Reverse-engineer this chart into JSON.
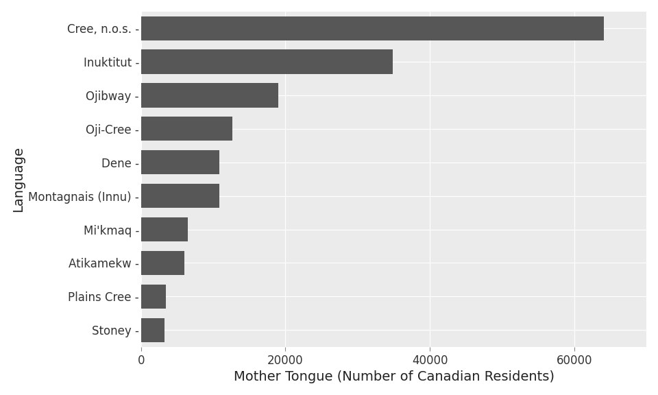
{
  "languages": [
    "Stoney",
    "Plains Cree",
    "Atikamekw",
    "Mi'kmaq",
    "Montagnais (Innu)",
    "Dene",
    "Oji-Cree",
    "Ojibway",
    "Inuktitut",
    "Cree, n.o.s."
  ],
  "values": [
    3210,
    3410,
    6000,
    6500,
    10855,
    10850,
    12600,
    19000,
    34840,
    64050
  ],
  "bar_color": "#575757",
  "figure_background": "#FFFFFF",
  "panel_background": "#EBEBEB",
  "grid_color": "#FFFFFF",
  "xlabel": "Mother Tongue (Number of Canadian Residents)",
  "ylabel": "Language",
  "xlim": [
    0,
    70000
  ],
  "xticks": [
    0,
    20000,
    40000,
    60000
  ],
  "tick_label_fontsize": 12,
  "axis_label_fontsize": 14,
  "bar_height": 0.72
}
